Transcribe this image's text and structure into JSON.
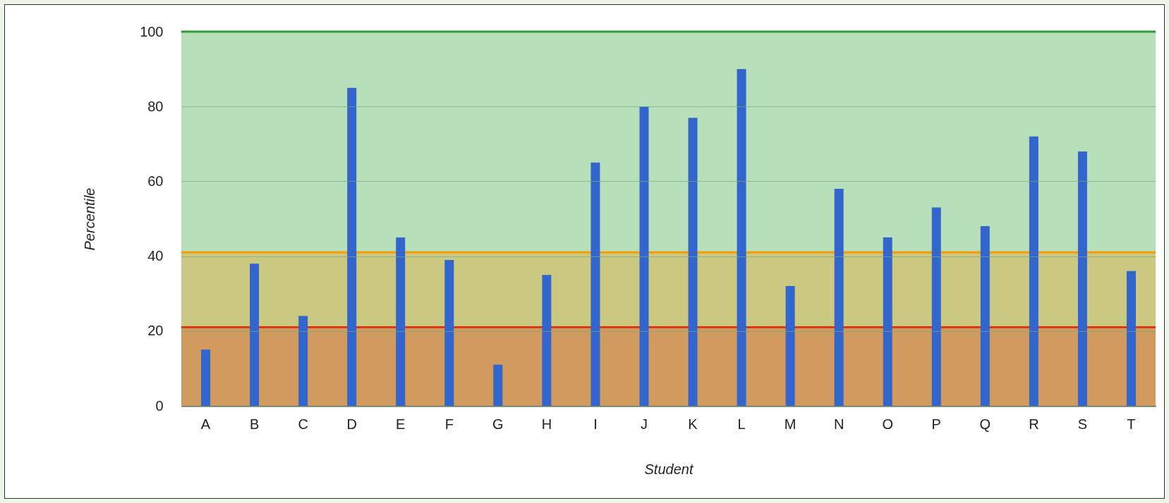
{
  "chart_data": {
    "type": "bar",
    "xlabel": "Student",
    "ylabel": "Percentile",
    "categories": [
      "A",
      "B",
      "C",
      "D",
      "E",
      "F",
      "G",
      "H",
      "I",
      "J",
      "K",
      "L",
      "M",
      "N",
      "O",
      "P",
      "Q",
      "R",
      "S",
      "T"
    ],
    "values": [
      15,
      38,
      24,
      85,
      45,
      39,
      11,
      35,
      65,
      80,
      77,
      90,
      32,
      58,
      45,
      53,
      48,
      72,
      68,
      36
    ],
    "color": "#3366cc",
    "ylim": [
      0,
      100
    ],
    "yticks": [
      0,
      20,
      40,
      60,
      80,
      100
    ],
    "grid": "y",
    "bands": [
      {
        "axis": "y",
        "from": 0,
        "to": 21,
        "color": "#d19a5e"
      },
      {
        "axis": "y",
        "from": 21,
        "to": 41,
        "color": "#cbc981"
      },
      {
        "axis": "y",
        "from": 41,
        "to": 100,
        "color": "#b7dfb9"
      }
    ],
    "ref_lines": [
      {
        "axis": "y",
        "value": 21,
        "color": "#dc3912"
      },
      {
        "axis": "y",
        "value": 41,
        "color": "#ff9900"
      },
      {
        "axis": "y",
        "value": 100,
        "color": "#109618"
      }
    ]
  }
}
